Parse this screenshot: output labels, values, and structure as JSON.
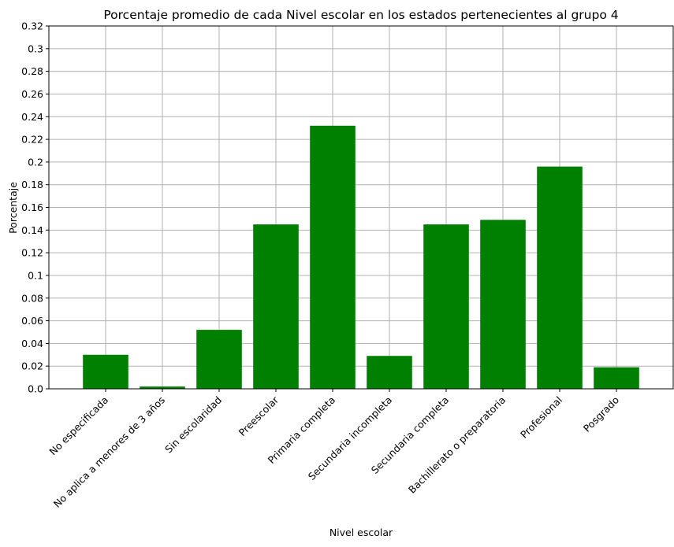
{
  "chart_data": {
    "type": "bar",
    "title": "Porcentaje promedio de cada Nivel escolar en los estados pertenecientes al grupo 4",
    "xlabel": "Nivel escolar",
    "ylabel": "Porcentaje",
    "categories": [
      "No especificada",
      "No aplica a menores de 3 años",
      "Sin escolaridad",
      "Preescolar",
      "Primaria completa",
      "Secundaria incompleta",
      "Secundaria completa",
      "Bachillerato o preparatoria",
      "Profesional",
      "Posgrado"
    ],
    "values": [
      0.03,
      0.002,
      0.052,
      0.145,
      0.232,
      0.029,
      0.145,
      0.149,
      0.196,
      0.019
    ],
    "ylim": [
      0,
      0.32
    ],
    "yticks": [
      0.0,
      0.02,
      0.04,
      0.06,
      0.08,
      0.1,
      0.12,
      0.14,
      0.16,
      0.18,
      0.2,
      0.22,
      0.24,
      0.26,
      0.28,
      0.3,
      0.32
    ],
    "ytick_labels": [
      "0.0",
      "0.02",
      "0.04",
      "0.06",
      "0.08",
      "0.1",
      "0.12",
      "0.14",
      "0.16",
      "0.18",
      "0.2",
      "0.22",
      "0.24",
      "0.26",
      "0.28",
      "0.3",
      "0.32"
    ],
    "grid": true,
    "bar_color": "#008000",
    "grid_color": "#b0b0b0"
  }
}
